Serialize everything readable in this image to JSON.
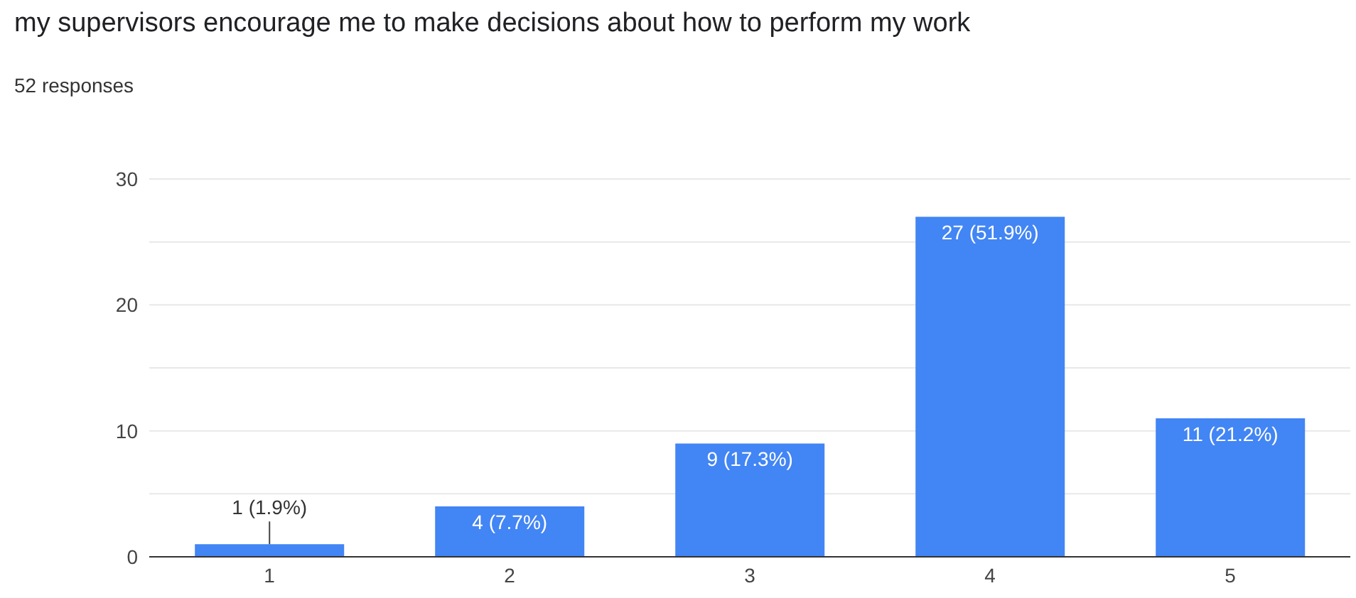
{
  "chart_data": {
    "type": "bar",
    "title": "my supervisors encourage me to make decisions about how to perform my work",
    "subtitle": "52 responses",
    "categories": [
      "1",
      "2",
      "3",
      "4",
      "5"
    ],
    "values": [
      1,
      4,
      9,
      27,
      11
    ],
    "value_labels": [
      "1 (1.9%)",
      "4 (7.7%)",
      "9 (17.3%)",
      "27 (51.9%)",
      "11 (21.2%)"
    ],
    "color": "#4285f4",
    "ylim": [
      0,
      30
    ],
    "yticks": [
      0,
      {
        "value": 5,
        "label": null
      },
      10,
      {
        "value": 15,
        "label": null
      },
      20,
      {
        "value": 25,
        "label": null
      },
      30
    ],
    "grid": "y"
  }
}
